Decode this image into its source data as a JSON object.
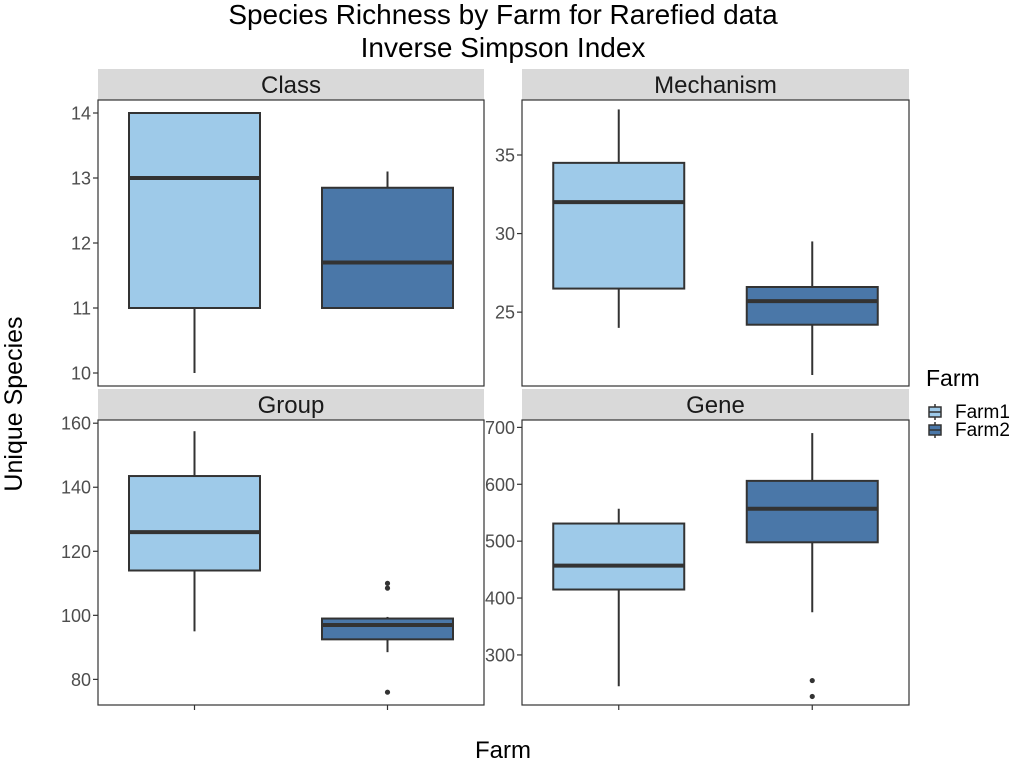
{
  "chart_data": {
    "type": "box",
    "title_line1": "Species Richness by Farm for Rarefied data",
    "title_line2": "Inverse Simpson Index",
    "xlabel": "Farm",
    "ylabel": "Unique Species",
    "legend": {
      "title": "Farm",
      "position": "right",
      "entries": [
        {
          "name": "Farm1",
          "color": "#9ECAE9"
        },
        {
          "name": "Farm2",
          "color": "#4A77A8"
        }
      ]
    },
    "categories": [
      "Farm1",
      "Farm2"
    ],
    "facets": [
      {
        "label": "Class",
        "ylim": [
          9.8,
          14.2
        ],
        "yticks": [
          10,
          11,
          12,
          13,
          14
        ],
        "boxes": [
          {
            "group": "Farm1",
            "min": 10,
            "q1": 11,
            "median": 13,
            "q3": 14,
            "max": 14,
            "outliers": []
          },
          {
            "group": "Farm2",
            "min": 11,
            "q1": 11,
            "median": 11.7,
            "q3": 12.85,
            "max": 13.1,
            "outliers": []
          }
        ]
      },
      {
        "label": "Mechanism",
        "ylim": [
          20.3,
          38.5
        ],
        "yticks": [
          25,
          30,
          35
        ],
        "boxes": [
          {
            "group": "Farm1",
            "min": 24,
            "q1": 26.5,
            "median": 32,
            "q3": 34.5,
            "max": 37.9,
            "outliers": []
          },
          {
            "group": "Farm2",
            "min": 21,
            "q1": 24.2,
            "median": 25.7,
            "q3": 26.6,
            "max": 29.5,
            "outliers": []
          }
        ]
      },
      {
        "label": "Group",
        "ylim": [
          72,
          161
        ],
        "yticks": [
          80,
          100,
          120,
          140,
          160
        ],
        "boxes": [
          {
            "group": "Farm1",
            "min": 95,
            "q1": 114,
            "median": 126,
            "q3": 143.5,
            "max": 157.5,
            "outliers": []
          },
          {
            "group": "Farm2",
            "min": 88.5,
            "q1": 92.5,
            "median": 97,
            "q3": 99,
            "max": 99.5,
            "outliers": [
              110,
              108.5,
              76
            ]
          }
        ]
      },
      {
        "label": "Gene",
        "ylim": [
          212,
          713
        ],
        "yticks": [
          300,
          400,
          500,
          600,
          700
        ],
        "boxes": [
          {
            "group": "Farm1",
            "min": 245,
            "q1": 415,
            "median": 457,
            "q3": 531,
            "max": 557,
            "outliers": []
          },
          {
            "group": "Farm2",
            "min": 375,
            "q1": 498,
            "median": 557,
            "q3": 606,
            "max": 690,
            "outliers": [
              255,
              227
            ]
          }
        ]
      }
    ]
  }
}
